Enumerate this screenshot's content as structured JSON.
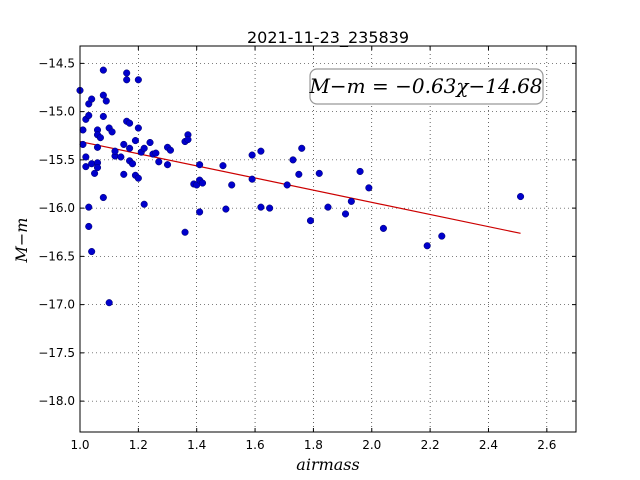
{
  "chart_data": {
    "type": "scatter",
    "title": "2021-11-23_235839",
    "xlabel": "airmass",
    "ylabel": "M−m",
    "xlim": [
      1.0,
      2.7
    ],
    "ylim": [
      -18.32,
      -14.32
    ],
    "xticks": [
      1.0,
      1.2,
      1.4,
      1.6,
      1.8,
      2.0,
      2.2,
      2.4,
      2.6
    ],
    "xtick_labels": [
      "1.0",
      "1.2",
      "1.4",
      "1.6",
      "1.8",
      "2.0",
      "2.2",
      "2.4",
      "2.6"
    ],
    "yticks": [
      -14.5,
      -15.0,
      -15.5,
      -16.0,
      -16.5,
      -17.0,
      -17.5,
      -18.0
    ],
    "ytick_labels": [
      "−14.5",
      "−15.0",
      "−15.5",
      "−16.0",
      "−16.5",
      "−17.0",
      "−17.5",
      "−18.0"
    ],
    "grid": true,
    "annotation": "M−m = −0.63χ−14.68",
    "annotation_position": "top-right",
    "colors": {
      "points": "#0000cc",
      "fit_line": "#cc0000"
    },
    "fit_line": {
      "slope": -0.63,
      "intercept": -14.68,
      "x_range": [
        1.0,
        2.51
      ]
    },
    "series": [
      {
        "points": [
          [
            1.0,
            -14.78
          ],
          [
            1.01,
            -15.19
          ],
          [
            1.01,
            -15.34
          ],
          [
            1.02,
            -15.57
          ],
          [
            1.02,
            -15.47
          ],
          [
            1.02,
            -15.08
          ],
          [
            1.03,
            -14.92
          ],
          [
            1.03,
            -15.04
          ],
          [
            1.03,
            -15.99
          ],
          [
            1.03,
            -16.19
          ],
          [
            1.04,
            -14.87
          ],
          [
            1.04,
            -15.54
          ],
          [
            1.04,
            -16.45
          ],
          [
            1.05,
            -15.64
          ],
          [
            1.06,
            -15.53
          ],
          [
            1.06,
            -15.58
          ],
          [
            1.06,
            -15.19
          ],
          [
            1.06,
            -15.24
          ],
          [
            1.06,
            -15.37
          ],
          [
            1.07,
            -15.27
          ],
          [
            1.08,
            -14.57
          ],
          [
            1.08,
            -14.83
          ],
          [
            1.08,
            -15.05
          ],
          [
            1.09,
            -14.89
          ],
          [
            1.08,
            -15.89
          ],
          [
            1.1,
            -15.17
          ],
          [
            1.11,
            -15.21
          ],
          [
            1.12,
            -15.46
          ],
          [
            1.12,
            -15.41
          ],
          [
            1.14,
            -15.47
          ],
          [
            1.15,
            -15.34
          ],
          [
            1.15,
            -15.65
          ],
          [
            1.16,
            -14.6
          ],
          [
            1.16,
            -14.67
          ],
          [
            1.16,
            -15.1
          ],
          [
            1.17,
            -15.12
          ],
          [
            1.17,
            -15.38
          ],
          [
            1.17,
            -15.51
          ],
          [
            1.18,
            -15.54
          ],
          [
            1.19,
            -15.3
          ],
          [
            1.19,
            -15.66
          ],
          [
            1.2,
            -14.67
          ],
          [
            1.2,
            -15.17
          ],
          [
            1.2,
            -15.69
          ],
          [
            1.21,
            -15.42
          ],
          [
            1.22,
            -15.38
          ],
          [
            1.22,
            -15.96
          ],
          [
            1.24,
            -15.32
          ],
          [
            1.25,
            -15.44
          ],
          [
            1.26,
            -15.43
          ],
          [
            1.27,
            -15.52
          ],
          [
            1.3,
            -15.55
          ],
          [
            1.3,
            -15.37
          ],
          [
            1.31,
            -15.4
          ],
          [
            1.36,
            -15.31
          ],
          [
            1.36,
            -16.25
          ],
          [
            1.37,
            -15.24
          ],
          [
            1.37,
            -15.29
          ],
          [
            1.39,
            -15.75
          ],
          [
            1.4,
            -15.76
          ],
          [
            1.41,
            -15.55
          ],
          [
            1.41,
            -15.71
          ],
          [
            1.41,
            -16.04
          ],
          [
            1.42,
            -15.74
          ],
          [
            1.1,
            -16.98
          ],
          [
            1.49,
            -15.56
          ],
          [
            1.5,
            -16.01
          ],
          [
            1.52,
            -15.76
          ],
          [
            1.59,
            -15.45
          ],
          [
            1.59,
            -15.7
          ],
          [
            1.62,
            -15.99
          ],
          [
            1.62,
            -15.41
          ],
          [
            1.65,
            -16.0
          ],
          [
            1.71,
            -15.76
          ],
          [
            1.73,
            -15.5
          ],
          [
            1.75,
            -15.65
          ],
          [
            1.76,
            -15.38
          ],
          [
            1.79,
            -16.13
          ],
          [
            1.82,
            -15.64
          ],
          [
            1.85,
            -15.99
          ],
          [
            1.91,
            -16.06
          ],
          [
            1.93,
            -15.93
          ],
          [
            1.96,
            -15.62
          ],
          [
            1.99,
            -15.79
          ],
          [
            2.04,
            -16.21
          ],
          [
            2.19,
            -16.39
          ],
          [
            2.24,
            -16.29
          ],
          [
            2.51,
            -15.88
          ]
        ]
      }
    ]
  }
}
